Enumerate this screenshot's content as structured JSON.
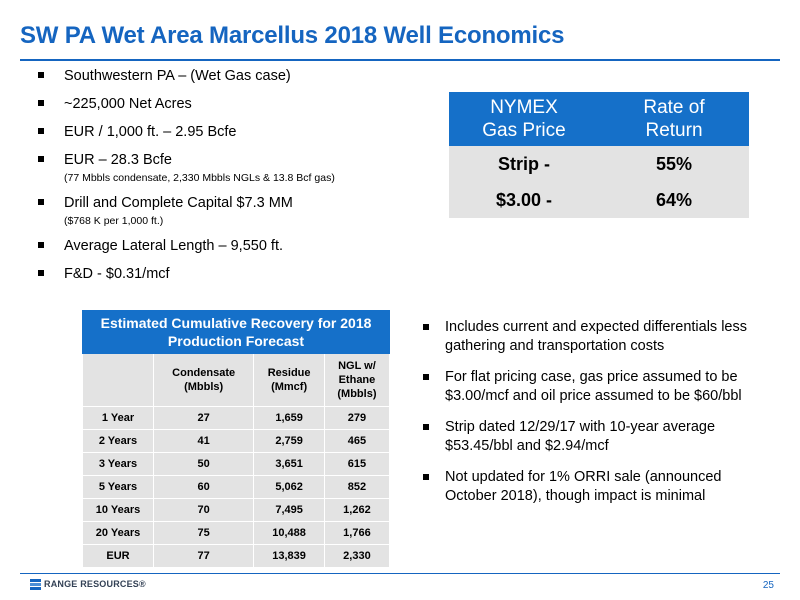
{
  "title": "SW PA Wet Area Marcellus 2018 Well Economics",
  "top_bullets": [
    {
      "text": "Southwestern PA – (Wet Gas case)",
      "sub": ""
    },
    {
      "text": "~225,000 Net Acres",
      "sub": ""
    },
    {
      "text": "EUR / 1,000 ft. – 2.95 Bcfe",
      "sub": ""
    },
    {
      "text": "EUR – 28.3 Bcfe",
      "sub": "(77 Mbbls condensate, 2,330 Mbbls NGLs & 13.8 Bcf gas)"
    },
    {
      "text": "Drill and Complete Capital $7.3 MM",
      "sub": "($768 K per 1,000 ft.)"
    },
    {
      "text": "Average Lateral Length – 9,550 ft.",
      "sub": ""
    },
    {
      "text": "F&D - $0.31/mcf",
      "sub": ""
    }
  ],
  "nymex_table": {
    "headers": [
      "NYMEX\nGas Price",
      "Rate of\nReturn"
    ],
    "rows": [
      [
        "Strip -",
        "55%"
      ],
      [
        "$3.00 -",
        "64%"
      ]
    ]
  },
  "recovery_table": {
    "caption": "Estimated Cumulative Recovery for 2018 Production Forecast",
    "headers": [
      "",
      "Condensate\n(Mbbls)",
      "Residue\n(Mmcf)",
      "NGL w/\nEthane\n(Mbbls)"
    ],
    "rows": [
      [
        "1 Year",
        "27",
        "1,659",
        "279"
      ],
      [
        "2 Years",
        "41",
        "2,759",
        "465"
      ],
      [
        "3 Years",
        "50",
        "3,651",
        "615"
      ],
      [
        "5 Years",
        "60",
        "5,062",
        "852"
      ],
      [
        "10 Years",
        "70",
        "7,495",
        "1,262"
      ],
      [
        "20 Years",
        "75",
        "10,488",
        "1,766"
      ],
      [
        "EUR",
        "77",
        "13,839",
        "2,330"
      ]
    ]
  },
  "right_bullets": [
    "Includes current and expected differentials less gathering and transportation costs",
    "For flat pricing case, gas price assumed to be $3.00/mcf and oil price assumed to be $60/bbl",
    "Strip dated 12/29/17 with 10-year average $53.45/bbl and $2.94/mcf",
    "Not updated for 1% ORRI sale (announced October 2018), though impact is minimal"
  ],
  "footer": {
    "logo_text": "RANGE RESOURCES®",
    "page_number": "25"
  }
}
